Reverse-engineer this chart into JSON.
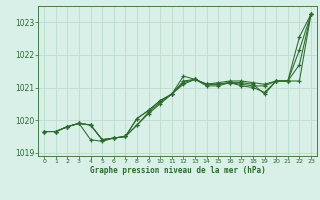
{
  "title": "Graphe pression niveau de la mer (hPa)",
  "bg_color": "#d8f0e8",
  "grid_color": "#b8d8c8",
  "line_color": "#2d6a2d",
  "hours": [
    0,
    1,
    2,
    3,
    4,
    5,
    6,
    7,
    8,
    9,
    10,
    11,
    12,
    13,
    14,
    15,
    16,
    17,
    18,
    19,
    20,
    21,
    22,
    23
  ],
  "series": {
    "line1": [
      1019.65,
      1019.65,
      1019.8,
      1019.9,
      1019.85,
      1019.4,
      1019.45,
      1019.5,
      1019.85,
      1020.25,
      1020.55,
      1020.8,
      1021.35,
      1021.25,
      1021.1,
      1021.15,
      1021.2,
      1021.2,
      1021.15,
      1021.1,
      1021.2,
      1021.2,
      1022.15,
      1023.25
    ],
    "line2": [
      1019.65,
      1019.65,
      1019.8,
      1019.9,
      1019.85,
      1019.4,
      1019.45,
      1019.5,
      1020.05,
      1020.3,
      1020.6,
      1020.8,
      1021.15,
      1021.25,
      1021.1,
      1021.1,
      1021.15,
      1021.1,
      1021.05,
      1021.05,
      1021.2,
      1021.2,
      1021.2,
      1023.25
    ],
    "line3": [
      1019.65,
      1019.65,
      1019.8,
      1019.9,
      1019.4,
      1019.35,
      1019.45,
      1019.5,
      1019.85,
      1020.2,
      1020.5,
      1020.8,
      1021.1,
      1021.25,
      1021.05,
      1021.05,
      1021.15,
      1021.05,
      1021.0,
      1020.85,
      1021.2,
      1021.2,
      1021.7,
      1023.25
    ],
    "line4": [
      1019.65,
      1019.65,
      1019.8,
      1019.9,
      1019.85,
      1019.4,
      1019.45,
      1019.5,
      1020.05,
      1020.3,
      1020.6,
      1020.8,
      1021.2,
      1021.25,
      1021.1,
      1021.1,
      1021.15,
      1021.15,
      1021.1,
      1020.8,
      1021.2,
      1021.2,
      1022.55,
      1023.25
    ]
  },
  "ylim": [
    1018.9,
    1023.5
  ],
  "yticks": [
    1019,
    1020,
    1021,
    1022,
    1023
  ],
  "xlim": [
    -0.5,
    23.5
  ],
  "xticks": [
    0,
    1,
    2,
    3,
    4,
    5,
    6,
    7,
    8,
    9,
    10,
    11,
    12,
    13,
    14,
    15,
    16,
    17,
    18,
    19,
    20,
    21,
    22,
    23
  ],
  "figsize": [
    3.2,
    2.0
  ],
  "dpi": 100
}
